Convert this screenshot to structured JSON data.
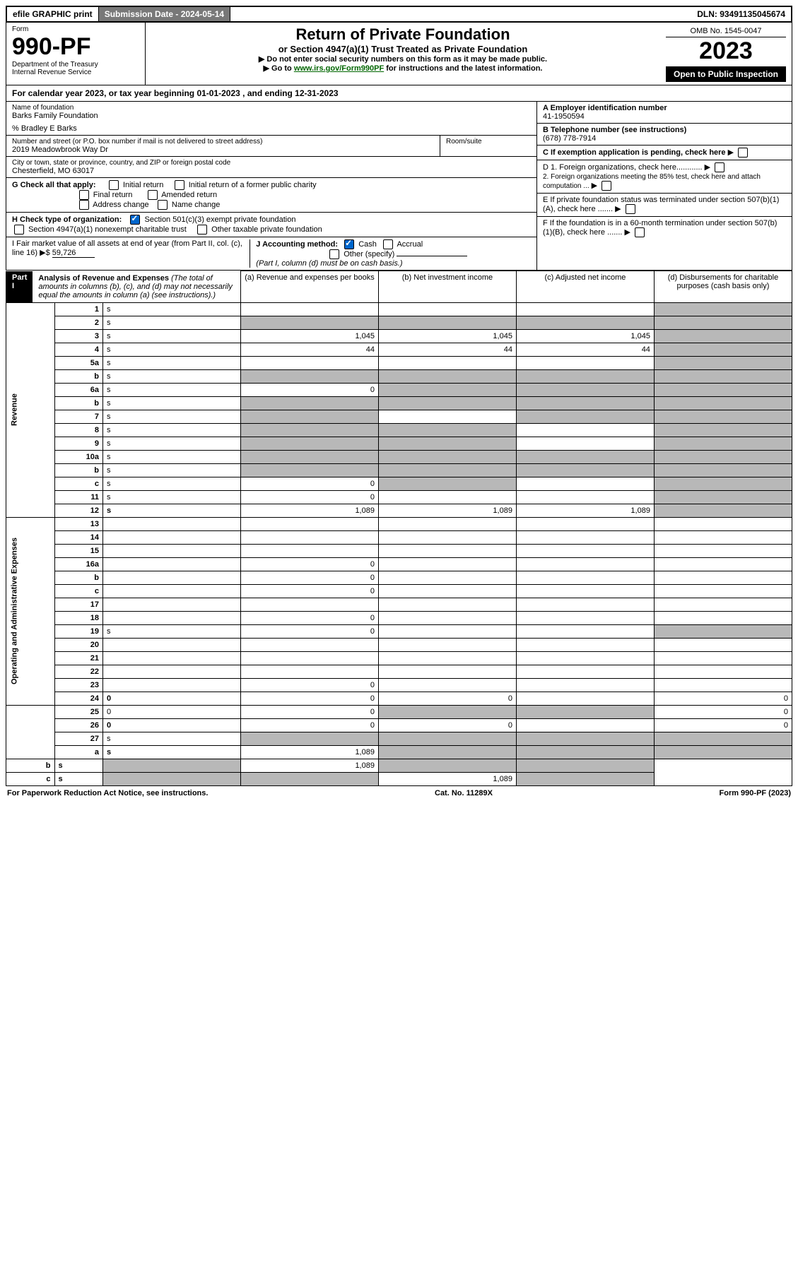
{
  "top": {
    "efile": "efile GRAPHIC print",
    "submission_label": "Submission Date - 2024-05-14",
    "dln": "DLN: 93491135045674"
  },
  "header": {
    "form_word": "Form",
    "form_no": "990-PF",
    "dept": "Department of the Treasury",
    "irs": "Internal Revenue Service",
    "title": "Return of Private Foundation",
    "subtitle": "or Section 4947(a)(1) Trust Treated as Private Foundation",
    "note1": "▶ Do not enter social security numbers on this form as it may be made public.",
    "note2_pre": "▶ Go to ",
    "note2_link": "www.irs.gov/Form990PF",
    "note2_post": " for instructions and the latest information.",
    "omb": "OMB No. 1545-0047",
    "year": "2023",
    "open": "Open to Public Inspection"
  },
  "calyear": "For calendar year 2023, or tax year beginning 01-01-2023              , and ending 12-31-2023",
  "foundation": {
    "name_label": "Name of foundation",
    "name": "Barks Family Foundation",
    "care_of": "% Bradley E Barks",
    "addr_label": "Number and street (or P.O. box number if mail is not delivered to street address)",
    "addr": "2019 Meadowbrook Way Dr",
    "room_label": "Room/suite",
    "city_label": "City or town, state or province, country, and ZIP or foreign postal code",
    "city": "Chesterfield, MO  63017"
  },
  "right": {
    "a_label": "A Employer identification number",
    "a_val": "41-1950594",
    "b_label": "B Telephone number (see instructions)",
    "b_val": "(678) 778-7914",
    "c_label": "C If exemption application is pending, check here",
    "d1": "D 1. Foreign organizations, check here............",
    "d2": "2. Foreign organizations meeting the 85% test, check here and attach computation ...",
    "e": "E  If private foundation status was terminated under section 507(b)(1)(A), check here .......",
    "f": "F  If the foundation is in a 60-month termination under section 507(b)(1)(B), check here ......."
  },
  "g": {
    "label": "G Check all that apply:",
    "initial": "Initial return",
    "initial_former": "Initial return of a former public charity",
    "final": "Final return",
    "amended": "Amended return",
    "address": "Address change",
    "name_change": "Name change"
  },
  "h": {
    "label": "H Check type of organization:",
    "sec501": "Section 501(c)(3) exempt private foundation",
    "sec4947": "Section 4947(a)(1) nonexempt charitable trust",
    "other_tax": "Other taxable private foundation"
  },
  "i": {
    "label": "I Fair market value of all assets at end of year (from Part II, col. (c), line 16)",
    "arrow": "▶$",
    "value": "59,726"
  },
  "j": {
    "label": "J Accounting method:",
    "cash": "Cash",
    "accrual": "Accrual",
    "other": "Other (specify)",
    "note": "(Part I, column (d) must be on cash basis.)"
  },
  "part1": {
    "label": "Part I",
    "title": "Analysis of Revenue and Expenses",
    "note": " (The total of amounts in columns (b), (c), and (d) may not necessarily equal the amounts in column (a) (see instructions).)",
    "col_a": "(a)  Revenue and expenses per books",
    "col_b": "(b)  Net investment income",
    "col_c": "(c)  Adjusted net income",
    "col_d": "(d)  Disbursements for charitable purposes (cash basis only)"
  },
  "revenue_label": "Revenue",
  "expenses_label": "Operating and Administrative Expenses",
  "rows": [
    {
      "n": "1",
      "d": "s",
      "a": "",
      "b": "",
      "c": ""
    },
    {
      "n": "2",
      "d": "s",
      "a": "s",
      "b": "s",
      "c": "s"
    },
    {
      "n": "3",
      "d": "s",
      "a": "1,045",
      "b": "1,045",
      "c": "1,045"
    },
    {
      "n": "4",
      "d": "s",
      "a": "44",
      "b": "44",
      "c": "44"
    },
    {
      "n": "5a",
      "d": "s",
      "a": "",
      "b": "",
      "c": ""
    },
    {
      "n": "b",
      "d": "s",
      "a": "s",
      "b": "s",
      "c": "s"
    },
    {
      "n": "6a",
      "d": "s",
      "a": "0",
      "b": "s",
      "c": "s"
    },
    {
      "n": "b",
      "d": "s",
      "a": "s",
      "b": "s",
      "c": "s"
    },
    {
      "n": "7",
      "d": "s",
      "a": "s",
      "b": "",
      "c": "s"
    },
    {
      "n": "8",
      "d": "s",
      "a": "s",
      "b": "s",
      "c": ""
    },
    {
      "n": "9",
      "d": "s",
      "a": "s",
      "b": "s",
      "c": ""
    },
    {
      "n": "10a",
      "d": "s",
      "a": "s",
      "b": "s",
      "c": "s"
    },
    {
      "n": "b",
      "d": "s",
      "a": "s",
      "b": "s",
      "c": "s"
    },
    {
      "n": "c",
      "d": "s",
      "a": "0",
      "b": "s",
      "c": ""
    },
    {
      "n": "11",
      "d": "s",
      "a": "0",
      "b": "",
      "c": ""
    },
    {
      "n": "12",
      "d": "s",
      "a": "1,089",
      "b": "1,089",
      "c": "1,089",
      "bold": true
    },
    {
      "n": "13",
      "d": "",
      "a": "",
      "b": "",
      "c": ""
    },
    {
      "n": "14",
      "d": "",
      "a": "",
      "b": "",
      "c": ""
    },
    {
      "n": "15",
      "d": "",
      "a": "",
      "b": "",
      "c": ""
    },
    {
      "n": "16a",
      "d": "",
      "a": "0",
      "b": "",
      "c": ""
    },
    {
      "n": "b",
      "d": "",
      "a": "0",
      "b": "",
      "c": ""
    },
    {
      "n": "c",
      "d": "",
      "a": "0",
      "b": "",
      "c": ""
    },
    {
      "n": "17",
      "d": "",
      "a": "",
      "b": "",
      "c": ""
    },
    {
      "n": "18",
      "d": "",
      "a": "0",
      "b": "",
      "c": ""
    },
    {
      "n": "19",
      "d": "s",
      "a": "0",
      "b": "",
      "c": ""
    },
    {
      "n": "20",
      "d": "",
      "a": "",
      "b": "",
      "c": ""
    },
    {
      "n": "21",
      "d": "",
      "a": "",
      "b": "",
      "c": ""
    },
    {
      "n": "22",
      "d": "",
      "a": "",
      "b": "",
      "c": ""
    },
    {
      "n": "23",
      "d": "",
      "a": "0",
      "b": "",
      "c": ""
    },
    {
      "n": "24",
      "d": "0",
      "a": "0",
      "b": "0",
      "c": "",
      "bold": true
    },
    {
      "n": "25",
      "d": "0",
      "a": "0",
      "b": "s",
      "c": "s"
    },
    {
      "n": "26",
      "d": "0",
      "a": "0",
      "b": "0",
      "c": "",
      "bold": true
    },
    {
      "n": "27",
      "d": "s",
      "a": "s",
      "b": "s",
      "c": "s"
    },
    {
      "n": "a",
      "d": "s",
      "a": "1,089",
      "b": "s",
      "c": "s",
      "bold": true
    },
    {
      "n": "b",
      "d": "s",
      "a": "s",
      "b": "1,089",
      "c": "s",
      "bold": true
    },
    {
      "n": "c",
      "d": "s",
      "a": "s",
      "b": "s",
      "c": "1,089",
      "bold": true
    }
  ],
  "footer": {
    "left": "For Paperwork Reduction Act Notice, see instructions.",
    "center": "Cat. No. 11289X",
    "right": "Form 990-PF (2023)"
  }
}
